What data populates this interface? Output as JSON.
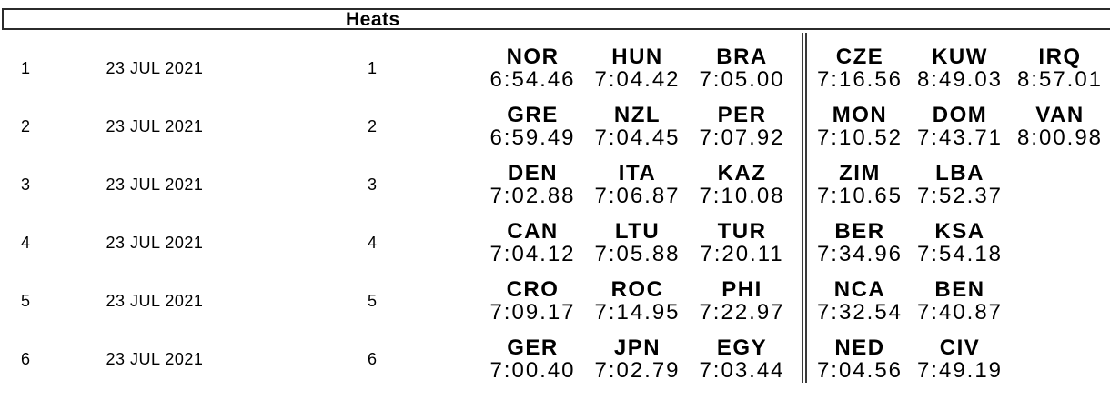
{
  "header": {
    "title": "Heats"
  },
  "table": {
    "date_label": "23 JUL 2021",
    "rows": [
      {
        "rank": "1",
        "date": "23 JUL 2021",
        "heat": "1",
        "results": [
          {
            "noc": "NOR",
            "time": "6:54.46"
          },
          {
            "noc": "HUN",
            "time": "7:04.42"
          },
          {
            "noc": "BRA",
            "time": "7:05.00"
          },
          {
            "noc": "CZE",
            "time": "7:16.56"
          },
          {
            "noc": "KUW",
            "time": "8:49.03"
          },
          {
            "noc": "IRQ",
            "time": "8:57.01"
          }
        ]
      },
      {
        "rank": "2",
        "date": "23 JUL 2021",
        "heat": "2",
        "results": [
          {
            "noc": "GRE",
            "time": "6:59.49"
          },
          {
            "noc": "NZL",
            "time": "7:04.45"
          },
          {
            "noc": "PER",
            "time": "7:07.92"
          },
          {
            "noc": "MON",
            "time": "7:10.52"
          },
          {
            "noc": "DOM",
            "time": "7:43.71"
          },
          {
            "noc": "VAN",
            "time": "8:00.98"
          }
        ]
      },
      {
        "rank": "3",
        "date": "23 JUL 2021",
        "heat": "3",
        "results": [
          {
            "noc": "DEN",
            "time": "7:02.88"
          },
          {
            "noc": "ITA",
            "time": "7:06.87"
          },
          {
            "noc": "KAZ",
            "time": "7:10.08"
          },
          {
            "noc": "ZIM",
            "time": "7:10.65"
          },
          {
            "noc": "LBA",
            "time": "7:52.37"
          }
        ]
      },
      {
        "rank": "4",
        "date": "23 JUL 2021",
        "heat": "4",
        "results": [
          {
            "noc": "CAN",
            "time": "7:04.12"
          },
          {
            "noc": "LTU",
            "time": "7:05.88"
          },
          {
            "noc": "TUR",
            "time": "7:20.11"
          },
          {
            "noc": "BER",
            "time": "7:34.96"
          },
          {
            "noc": "KSA",
            "time": "7:54.18"
          }
        ]
      },
      {
        "rank": "5",
        "date": "23 JUL 2021",
        "heat": "5",
        "results": [
          {
            "noc": "CRO",
            "time": "7:09.17"
          },
          {
            "noc": "ROC",
            "time": "7:14.95"
          },
          {
            "noc": "PHI",
            "time": "7:22.97"
          },
          {
            "noc": "NCA",
            "time": "7:32.54"
          },
          {
            "noc": "BEN",
            "time": "7:40.87"
          }
        ]
      },
      {
        "rank": "6",
        "date": "23 JUL 2021",
        "heat": "6",
        "results": [
          {
            "noc": "GER",
            "time": "7:00.40"
          },
          {
            "noc": "JPN",
            "time": "7:02.79"
          },
          {
            "noc": "EGY",
            "time": "7:03.44"
          },
          {
            "noc": "NED",
            "time": "7:04.56"
          },
          {
            "noc": "CIV",
            "time": "7:49.19"
          }
        ]
      }
    ]
  }
}
